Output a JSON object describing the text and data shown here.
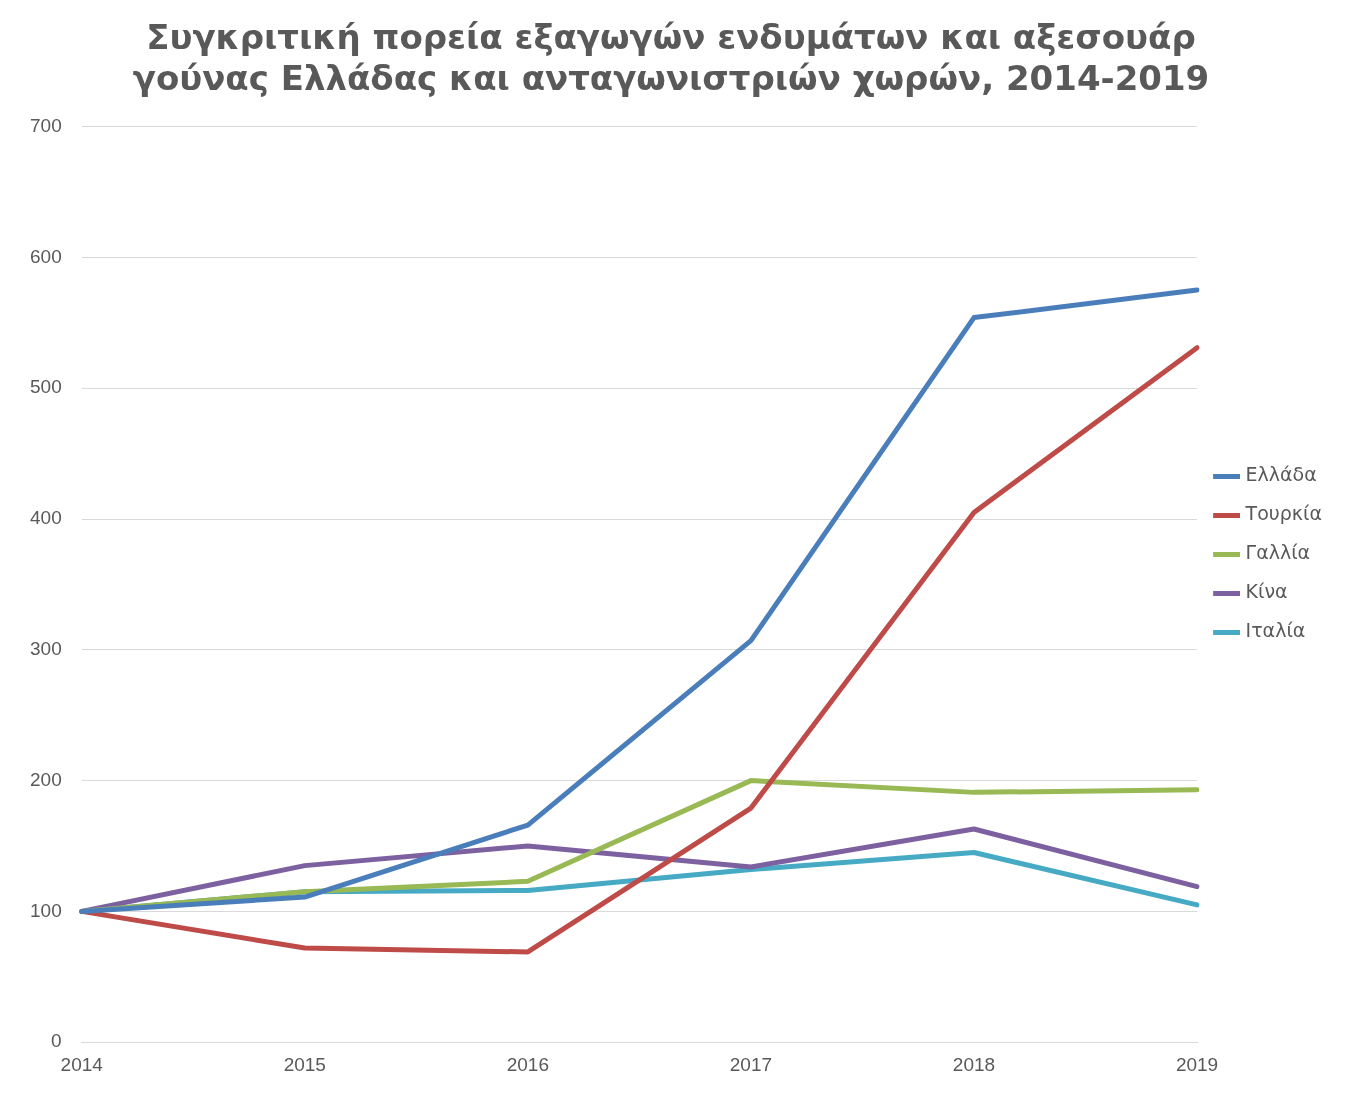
{
  "chart_data": {
    "type": "line",
    "title": "Συγκριτική πορεία εξαγωγών ενδυμάτων και αξεσουάρ\nγούνας Ελλάδας και ανταγωνιστριών χωρών, 2014-2019",
    "categories": [
      "2014",
      "2015",
      "2016",
      "2017",
      "2018",
      "2019"
    ],
    "series": [
      {
        "name": "Ελλάδα",
        "color": "#4a7ebb",
        "values": [
          100,
          111,
          166,
          307,
          554,
          575
        ]
      },
      {
        "name": "Τουρκία",
        "color": "#be4b48",
        "values": [
          100,
          72,
          69,
          179,
          405,
          531
        ]
      },
      {
        "name": "Γαλλία",
        "color": "#98b954",
        "values": [
          100,
          115,
          123,
          200,
          191,
          193
        ]
      },
      {
        "name": "Κίνα",
        "color": "#7d60a0",
        "values": [
          100,
          135,
          150,
          134,
          163,
          119
        ]
      },
      {
        "name": "Ιταλία",
        "color": "#46aac5",
        "values": [
          100,
          115,
          116,
          132,
          145,
          105
        ]
      }
    ],
    "ylim": [
      0,
      700
    ],
    "yticks": [
      0,
      100,
      200,
      300,
      400,
      500,
      600,
      700
    ],
    "grid": "y",
    "legend": "right",
    "marker": "none",
    "line_style": "solid"
  }
}
